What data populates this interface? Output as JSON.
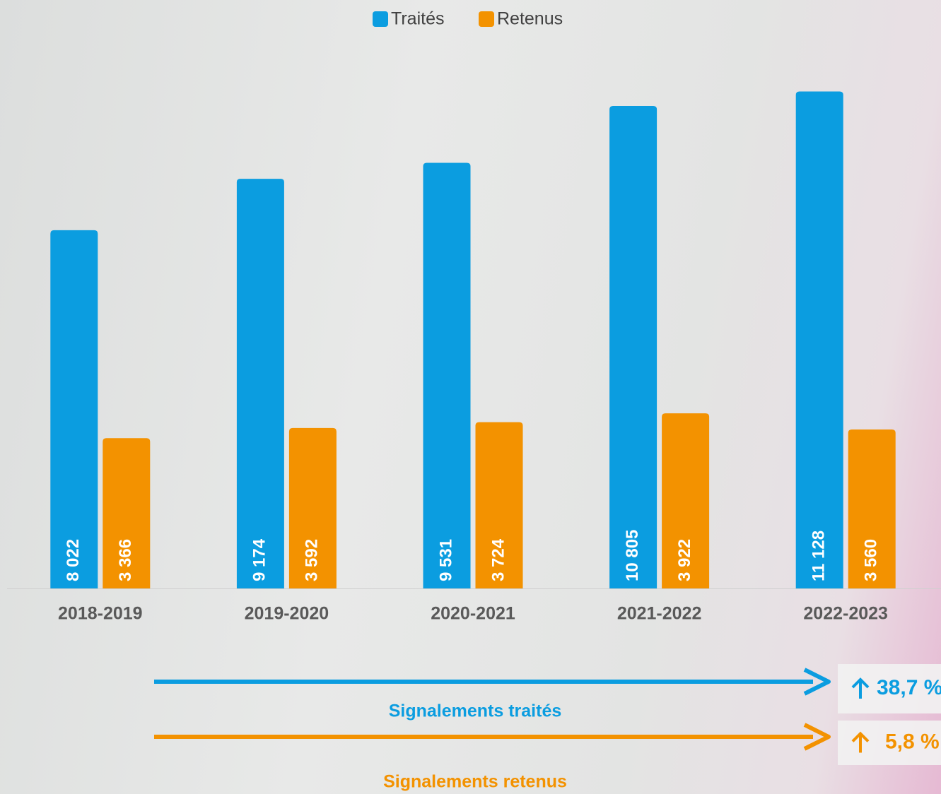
{
  "chart_data": {
    "type": "bar",
    "categories": [
      "2018-2019",
      "2019-2020",
      "2020-2021",
      "2021-2022",
      "2022-2023"
    ],
    "series": [
      {
        "name": "Traités",
        "color": "#0b9de0",
        "values": [
          8022,
          9174,
          9531,
          10805,
          11128
        ],
        "value_labels": [
          "8 022",
          "9 174",
          "9 531",
          "10 805",
          "11 128"
        ]
      },
      {
        "name": "Retenus",
        "color": "#f39200",
        "values": [
          3366,
          3592,
          3724,
          3922,
          3560
        ],
        "value_labels": [
          "3 366",
          "3 592",
          "3 724",
          "3 922",
          "3 560"
        ]
      }
    ],
    "ylim": [
      0,
      11200
    ],
    "legend": "top",
    "annotations": [
      {
        "label": "Signalements traités",
        "change": "38,7 %",
        "color": "#0b9de0"
      },
      {
        "label": "Signalements retenus",
        "change": "5,8 %",
        "color": "#f39200"
      }
    ]
  }
}
